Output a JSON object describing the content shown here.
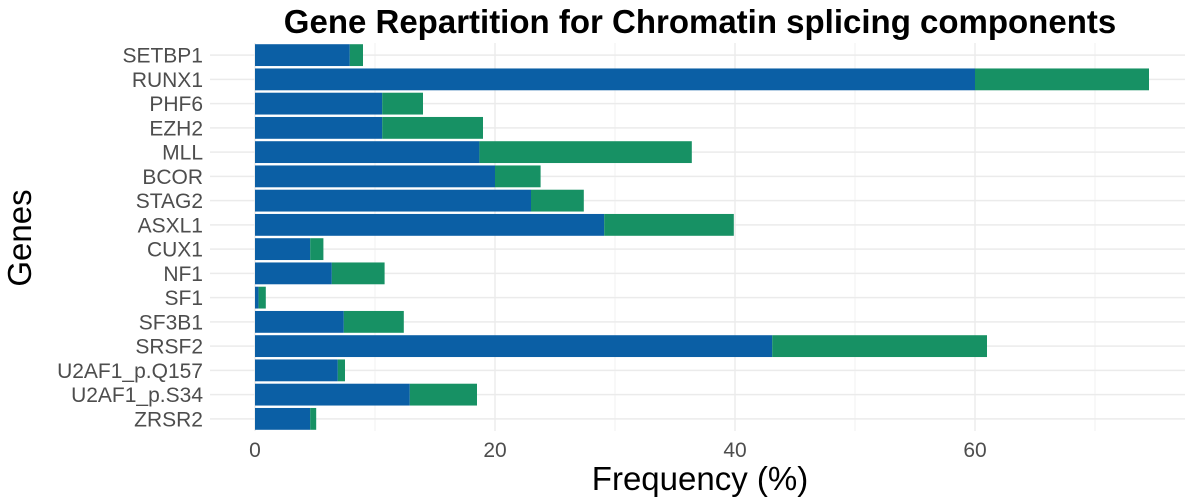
{
  "chart_data": {
    "type": "bar",
    "orientation": "horizontal",
    "stacked": true,
    "title": "Gene Repartition for Chromatin splicing components",
    "xlabel": "Frequency (%)",
    "ylabel": "Genes",
    "xlim": [
      0,
      75
    ],
    "xticks": [
      0,
      20,
      40,
      60
    ],
    "xtick_labels": [
      "0",
      "20",
      "40",
      "60"
    ],
    "grid": true,
    "legend": "none",
    "categories": [
      "SETBP1",
      "RUNX1",
      "PHF6",
      "EZH2",
      "MLL",
      "BCOR",
      "STAG2",
      "ASXL1",
      "CUX1",
      "NF1",
      "SF1",
      "SF3B1",
      "SRSF2",
      "U2AF1_p.Q157",
      "U2AF1_p.S34",
      "ZRSR2"
    ],
    "series": [
      {
        "color": "#0b5fa5",
        "values": [
          7.9,
          60.0,
          10.6,
          10.6,
          18.7,
          20.0,
          23.0,
          29.1,
          4.6,
          6.4,
          0.3,
          7.4,
          43.1,
          6.9,
          12.9,
          4.6
        ]
      },
      {
        "color": "#179164",
        "values": [
          1.1,
          14.5,
          3.4,
          8.4,
          17.7,
          3.8,
          4.4,
          10.8,
          1.1,
          4.4,
          0.6,
          5.0,
          17.9,
          0.6,
          5.6,
          0.5
        ]
      }
    ]
  }
}
